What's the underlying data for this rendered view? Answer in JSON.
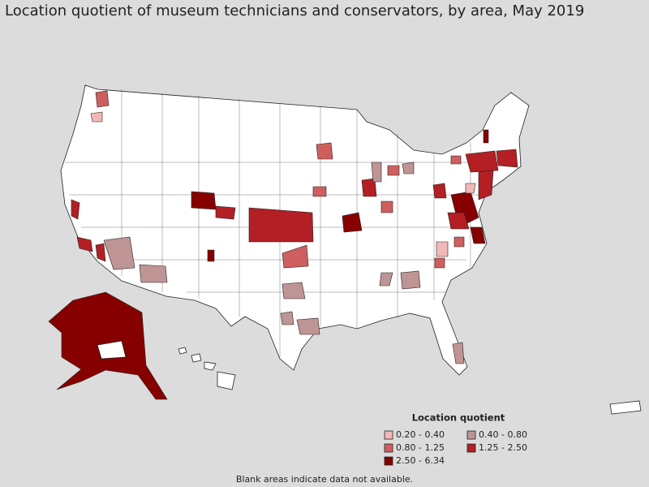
{
  "header": {
    "title": "Location quotient of museum technicians and conservators, by area, May 2019"
  },
  "legend": {
    "title": "Location quotient",
    "items": [
      {
        "label": "0.20 - 0.40",
        "color": "#f2b8b8"
      },
      {
        "label": "0.40 - 0.80",
        "color": "#bf9494"
      },
      {
        "label": "0.80 - 1.25",
        "color": "#cf5f5f"
      },
      {
        "label": "1.25 - 2.50",
        "color": "#b31f24"
      },
      {
        "label": "2.50 - 6.34",
        "color": "#870000"
      }
    ]
  },
  "footnote": "Blank areas indicate data not available."
}
